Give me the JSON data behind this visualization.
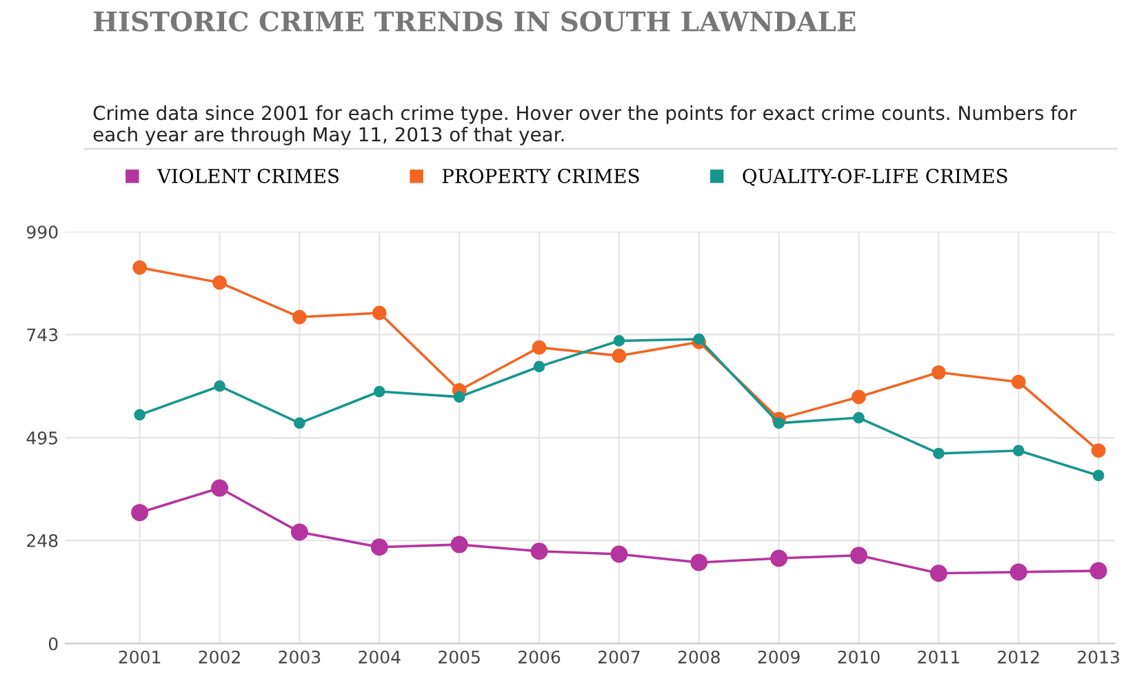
{
  "chart_data": {
    "type": "line",
    "title": "HISTORIC CRIME TRENDS IN SOUTH LAWNDALE",
    "subtitle": "Crime data since 2001 for each crime type. Hover over the points for exact crime counts. Numbers for each year are through May 11, 2013 of that year.",
    "categories": [
      "2001",
      "2002",
      "2003",
      "2004",
      "2005",
      "2006",
      "2007",
      "2008",
      "2009",
      "2010",
      "2011",
      "2012",
      "2013"
    ],
    "series": [
      {
        "name": "VIOLENT CRIMES",
        "color": "#b5359e",
        "values": [
          315,
          374,
          268,
          232,
          238,
          222,
          215,
          195,
          205,
          212,
          169,
          172,
          175
        ]
      },
      {
        "name": "PROPERTY CRIMES",
        "color": "#f26522",
        "values": [
          904,
          868,
          785,
          795,
          609,
          712,
          692,
          725,
          540,
          593,
          652,
          629,
          464
        ]
      },
      {
        "name": "QUALITY-OF-LIFE CRIMES",
        "color": "#17968e",
        "values": [
          550,
          619,
          530,
          606,
          593,
          666,
          728,
          732,
          530,
          543,
          457,
          464,
          404
        ]
      }
    ],
    "ylim": [
      0,
      990
    ],
    "yticks": [
      0,
      248,
      495,
      743,
      990
    ],
    "grid": true,
    "legend": "top left",
    "marker": "circle",
    "line_style": "solid"
  }
}
